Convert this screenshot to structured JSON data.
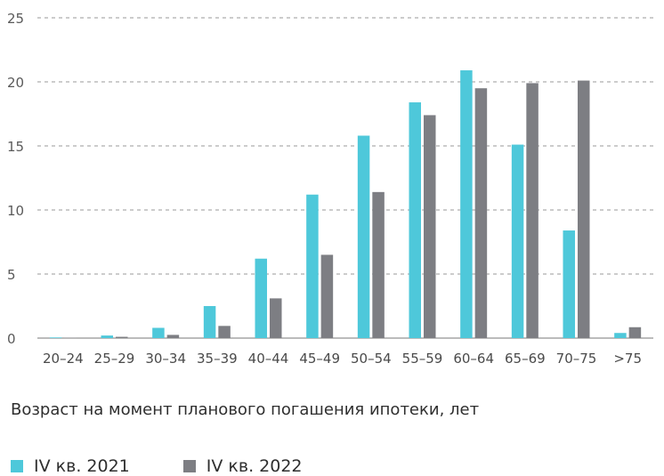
{
  "chart_data": {
    "type": "bar",
    "categories": [
      "20–24",
      "25–29",
      "30–34",
      "35–39",
      "40–44",
      "45–49",
      "50–54",
      "55–59",
      "60–64",
      "65–69",
      "70–75",
      ">75"
    ],
    "series": [
      {
        "name": "IV кв. 2021",
        "color": "#4ec8da",
        "values": [
          0.05,
          0.2,
          0.8,
          2.5,
          6.2,
          11.2,
          15.8,
          18.4,
          20.9,
          15.1,
          8.4,
          0.4
        ]
      },
      {
        "name": "IV кв. 2022",
        "color": "#7d7e83",
        "values": [
          0.03,
          0.1,
          0.25,
          0.95,
          3.1,
          6.5,
          11.4,
          17.4,
          19.5,
          19.9,
          20.1,
          0.85
        ]
      }
    ],
    "yticks": [
      0,
      5,
      10,
      15,
      20,
      25
    ],
    "ylim": [
      0,
      25
    ],
    "xlabel": "Возраст на момент планового погашения ипотеки, лет",
    "ylabel": "",
    "title": "",
    "grid": true,
    "legend_position": "bottom-left"
  }
}
